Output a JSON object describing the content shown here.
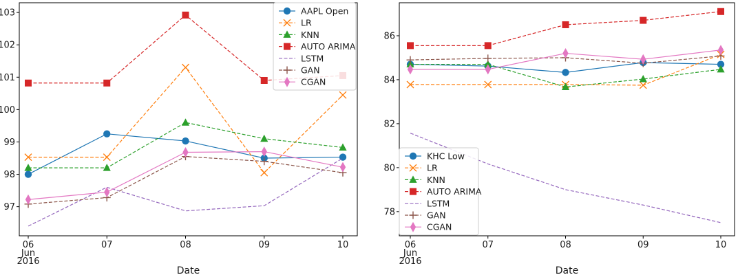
{
  "chart_data": [
    {
      "type": "line",
      "xlabel": "Date",
      "x_ticks": [
        "06",
        "07",
        "08",
        "09",
        "10"
      ],
      "x_tick_sub": [
        "Jun",
        "2016"
      ],
      "ylim": [
        96.1,
        103.3
      ],
      "y_ticks": [
        "97",
        "98",
        "99",
        "100",
        "101",
        "102",
        "103"
      ],
      "y_tick_values": [
        97,
        98,
        99,
        100,
        101,
        102,
        103
      ],
      "legend_position": "top-right",
      "series": [
        {
          "name": "AAPL Open",
          "color": "#1f77b4",
          "dash": "solid",
          "marker": "circle",
          "values": [
            98.0,
            99.25,
            99.03,
            98.5,
            98.53
          ]
        },
        {
          "name": "LR",
          "color": "#ff7f0e",
          "dash": "dashed",
          "marker": "x",
          "values": [
            98.53,
            98.53,
            101.3,
            98.05,
            100.45
          ]
        },
        {
          "name": "KNN",
          "color": "#2ca02c",
          "dash": "dashed",
          "marker": "triangle",
          "values": [
            98.2,
            98.2,
            99.6,
            99.1,
            98.83
          ]
        },
        {
          "name": "AUTO ARIMA",
          "color": "#d62728",
          "dash": "dashed",
          "marker": "square",
          "values": [
            100.82,
            100.82,
            102.92,
            100.9,
            101.05
          ]
        },
        {
          "name": "LSTM",
          "color": "#9467bd",
          "dash": "dashed",
          "marker": "none",
          "values": [
            96.4,
            97.6,
            96.87,
            97.03,
            98.5
          ]
        },
        {
          "name": "GAN",
          "color": "#8c564b",
          "dash": "dashed",
          "marker": "plus",
          "values": [
            97.08,
            97.28,
            98.55,
            98.4,
            98.05
          ]
        },
        {
          "name": "CGAN",
          "color": "#e377c2",
          "dash": "solid",
          "marker": "diamond",
          "values": [
            97.22,
            97.45,
            98.68,
            98.7,
            98.22
          ]
        }
      ]
    },
    {
      "type": "line",
      "xlabel": "Date",
      "x_ticks": [
        "06",
        "07",
        "08",
        "09",
        "10"
      ],
      "x_tick_sub": [
        "Jun",
        "2016"
      ],
      "ylim": [
        76.9,
        87.5
      ],
      "y_ticks": [
        "78",
        "80",
        "82",
        "84",
        "86"
      ],
      "y_tick_values": [
        78,
        80,
        82,
        84,
        86
      ],
      "legend_position": "lower-left",
      "series": [
        {
          "name": "KHC Low",
          "color": "#1f77b4",
          "dash": "solid",
          "marker": "circle",
          "values": [
            84.7,
            84.62,
            84.33,
            84.78,
            84.7
          ]
        },
        {
          "name": "LR",
          "color": "#ff7f0e",
          "dash": "dashed",
          "marker": "x",
          "values": [
            83.78,
            83.78,
            83.78,
            83.75,
            85.15
          ]
        },
        {
          "name": "KNN",
          "color": "#2ca02c",
          "dash": "dashed",
          "marker": "triangle",
          "values": [
            84.7,
            84.7,
            83.67,
            84.03,
            84.47
          ]
        },
        {
          "name": "AUTO ARIMA",
          "color": "#d62728",
          "dash": "dashed",
          "marker": "square",
          "values": [
            85.55,
            85.55,
            86.5,
            86.7,
            87.1
          ]
        },
        {
          "name": "LSTM",
          "color": "#9467bd",
          "dash": "dashed",
          "marker": "none",
          "values": [
            81.57,
            80.17,
            79.0,
            78.3,
            77.5
          ]
        },
        {
          "name": "GAN",
          "color": "#8c564b",
          "dash": "dashed",
          "marker": "plus",
          "values": [
            84.9,
            84.97,
            85.0,
            84.75,
            85.08
          ]
        },
        {
          "name": "CGAN",
          "color": "#e377c2",
          "dash": "solid",
          "marker": "diamond",
          "values": [
            84.47,
            84.47,
            85.2,
            84.93,
            85.35
          ]
        }
      ]
    }
  ]
}
